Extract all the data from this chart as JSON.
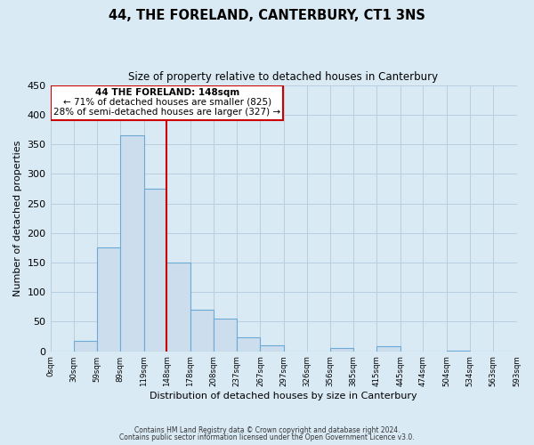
{
  "title": "44, THE FORELAND, CANTERBURY, CT1 3NS",
  "subtitle": "Size of property relative to detached houses in Canterbury",
  "xlabel": "Distribution of detached houses by size in Canterbury",
  "ylabel": "Number of detached properties",
  "bar_edges": [
    0,
    30,
    59,
    89,
    119,
    148,
    178,
    208,
    237,
    267,
    297,
    326,
    356,
    385,
    415,
    445,
    474,
    504,
    534,
    563,
    593
  ],
  "bar_heights": [
    0,
    18,
    175,
    365,
    275,
    150,
    70,
    55,
    23,
    10,
    0,
    0,
    6,
    0,
    8,
    0,
    0,
    1,
    0,
    0,
    1
  ],
  "tick_labels": [
    "0sqm",
    "30sqm",
    "59sqm",
    "89sqm",
    "119sqm",
    "148sqm",
    "178sqm",
    "208sqm",
    "237sqm",
    "267sqm",
    "297sqm",
    "326sqm",
    "356sqm",
    "385sqm",
    "415sqm",
    "445sqm",
    "474sqm",
    "504sqm",
    "534sqm",
    "563sqm",
    "593sqm"
  ],
  "bar_color": "#ccdded",
  "bar_edge_color": "#6aaad4",
  "vline_x": 148,
  "vline_color": "#cc0000",
  "annotation_box_edge_color": "#cc0000",
  "annotation_text_line1": "44 THE FORELAND: 148sqm",
  "annotation_text_line2": "← 71% of detached houses are smaller (825)",
  "annotation_text_line3": "28% of semi-detached houses are larger (327) →",
  "ylim": [
    0,
    450
  ],
  "yticks": [
    0,
    50,
    100,
    150,
    200,
    250,
    300,
    350,
    400,
    450
  ],
  "grid_color": "#b8cfe0",
  "background_color": "#daeaf5",
  "footer_line1": "Contains HM Land Registry data © Crown copyright and database right 2024.",
  "footer_line2": "Contains public sector information licensed under the Open Government Licence v3.0."
}
